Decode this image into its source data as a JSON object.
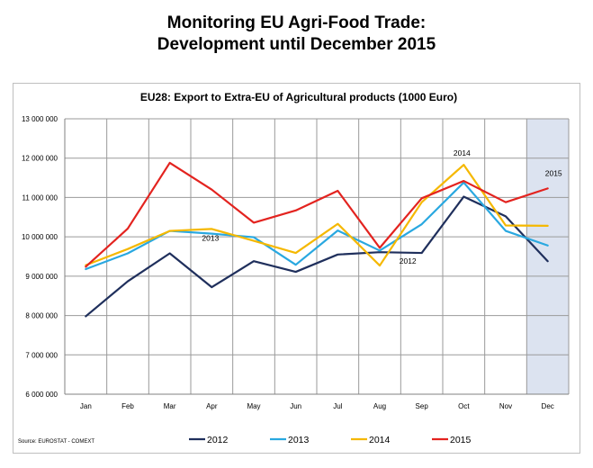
{
  "page": {
    "title_line1": "Monitoring EU Agri-Food Trade:",
    "title_line2": "Development until December 2015"
  },
  "chart_data": {
    "type": "line",
    "title": "EU28: Export to Extra-EU of Agricultural products (1000 Euro)",
    "categories": [
      "Jan",
      "Feb",
      "Mar",
      "Apr",
      "May",
      "Jun",
      "Jul",
      "Aug",
      "Sep",
      "Oct",
      "Nov",
      "Dec"
    ],
    "ylim": [
      6000000,
      13000000
    ],
    "yticks": [
      6000000,
      7000000,
      8000000,
      9000000,
      10000000,
      11000000,
      12000000,
      13000000
    ],
    "ytick_labels": [
      "6 000 000",
      "7 000 000",
      "8 000 000",
      "9 000 000",
      "10 000 000",
      "11 000 000",
      "12 000 000",
      "13 000 000"
    ],
    "grid": true,
    "legend_position": "bottom",
    "highlight_category": "Dec",
    "series": [
      {
        "name": "2012",
        "color": "#1f2f5c",
        "values": [
          7980000,
          8870000,
          9580000,
          8720000,
          9380000,
          9110000,
          9550000,
          9610000,
          9590000,
          11020000,
          10520000,
          9380000
        ]
      },
      {
        "name": "2013",
        "color": "#29a8e0",
        "values": [
          9180000,
          9580000,
          10150000,
          10080000,
          9990000,
          9290000,
          10160000,
          9650000,
          10320000,
          11380000,
          10150000,
          9780000
        ]
      },
      {
        "name": "2014",
        "color": "#f5b800",
        "values": [
          9280000,
          9690000,
          10150000,
          10200000,
          9900000,
          9590000,
          10330000,
          9270000,
          10880000,
          11830000,
          10290000,
          10280000
        ]
      },
      {
        "name": "2015",
        "color": "#e3231f",
        "values": [
          9240000,
          10210000,
          11880000,
          11200000,
          10360000,
          10670000,
          11170000,
          9720000,
          10980000,
          11420000,
          10880000,
          11230000
        ]
      }
    ],
    "annotations": [
      {
        "text": "2014",
        "series": "2014",
        "category": "Oct"
      },
      {
        "text": "2015",
        "series": "2015",
        "category": "Dec"
      },
      {
        "text": "2013",
        "series": "2013",
        "category": "Apr"
      },
      {
        "text": "2012",
        "series": "2012",
        "category": "Sep"
      }
    ],
    "source": "Source: EUROSTAT - COMEXT"
  }
}
